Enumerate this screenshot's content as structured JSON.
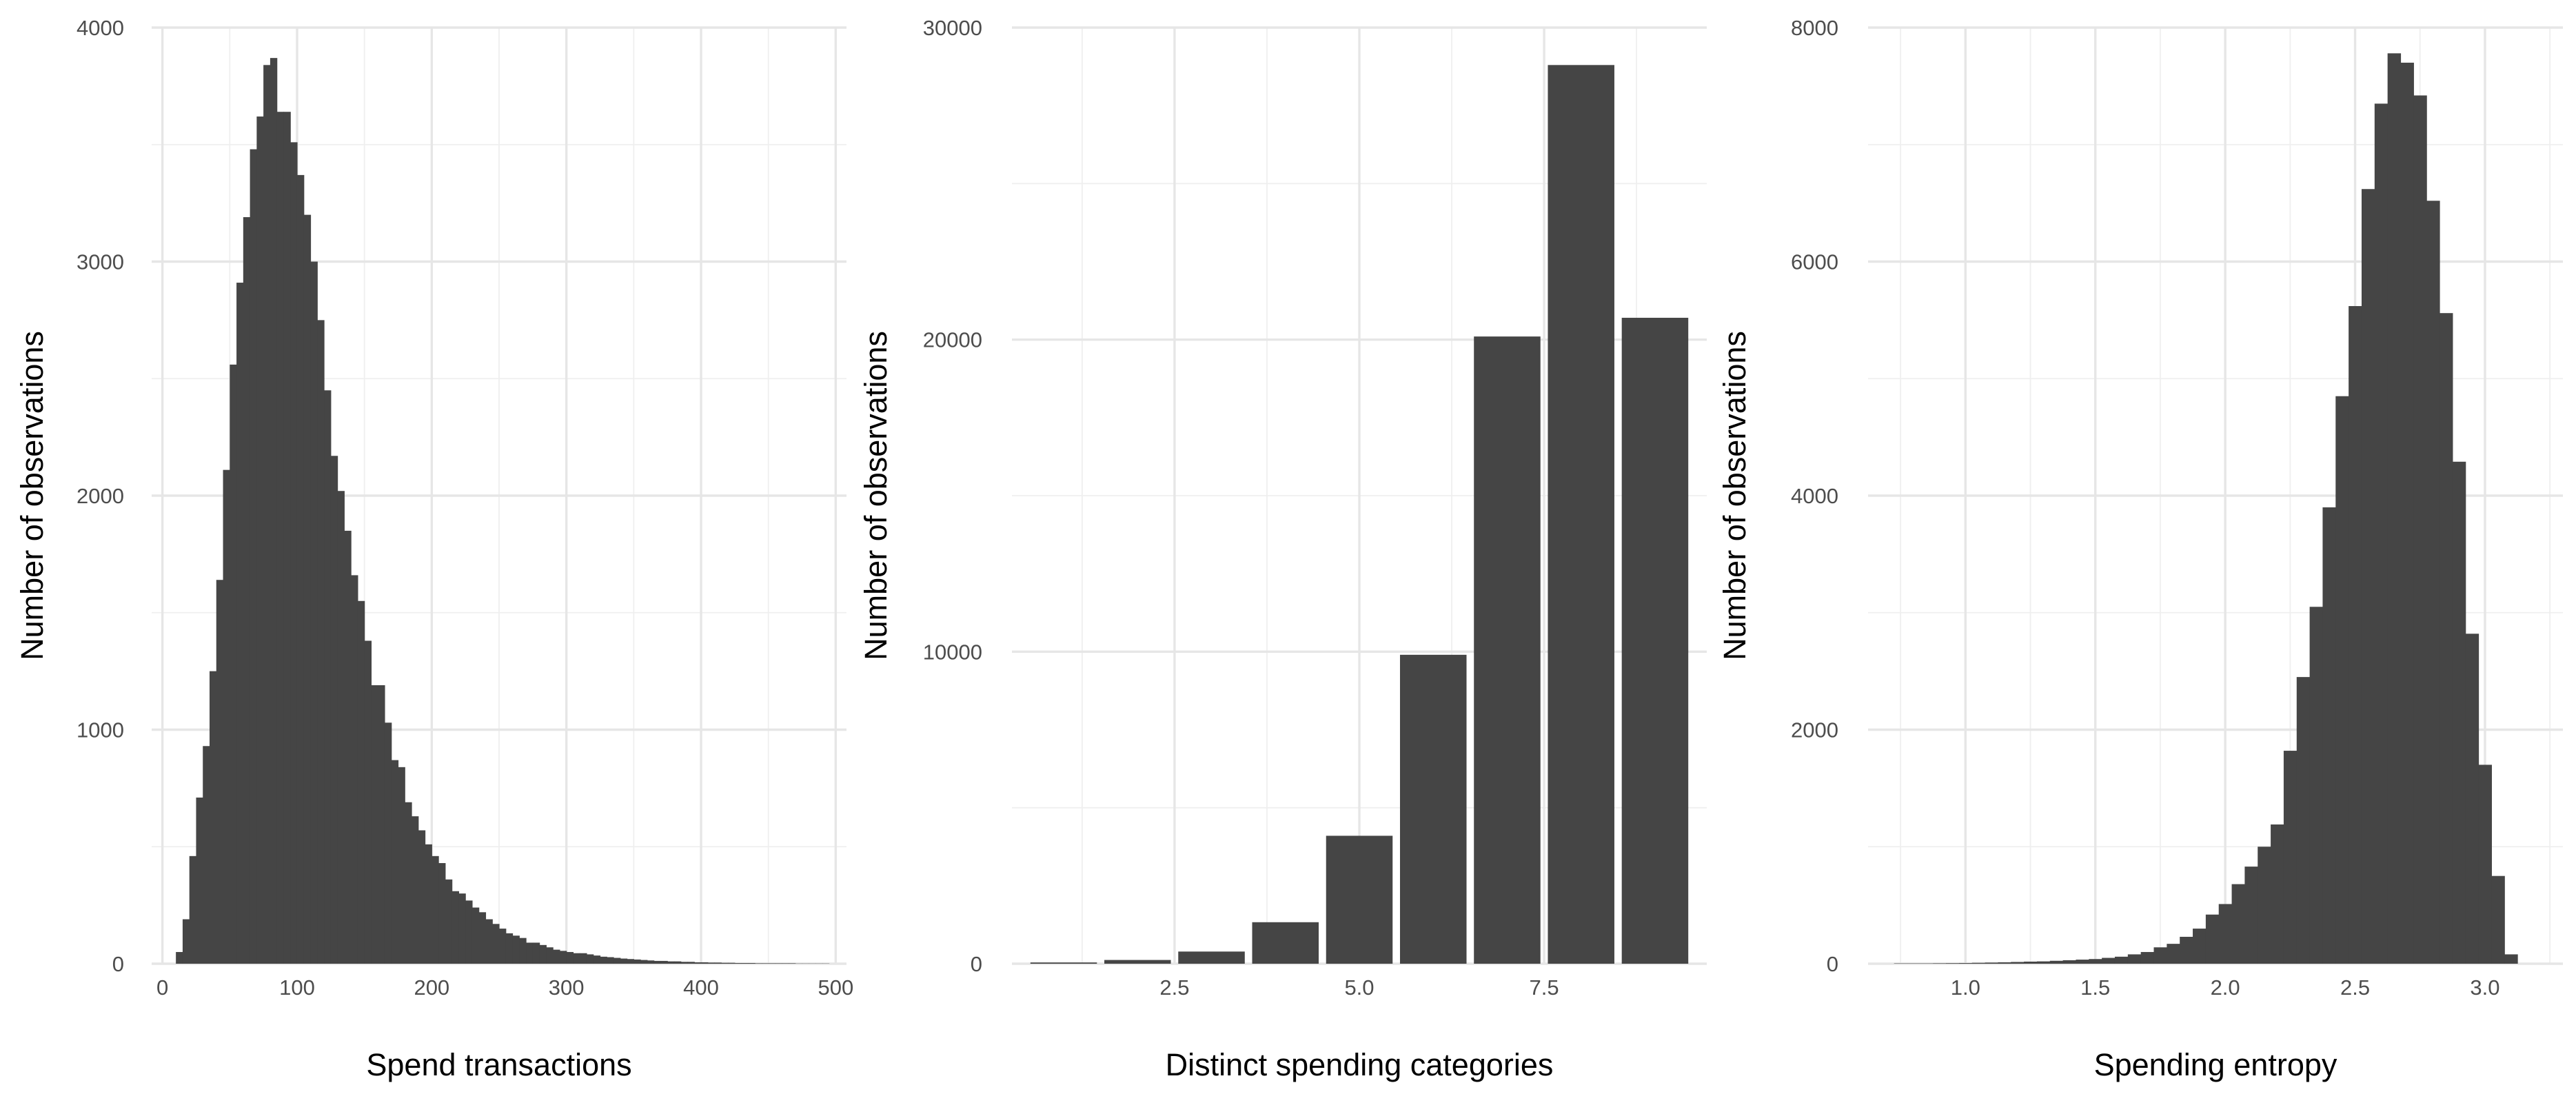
{
  "colors": {
    "bar": "#454545",
    "grid_major": "#e6e6e6",
    "grid_minor": "#efefef",
    "tick_text": "#4d4d4d"
  },
  "chart_data": [
    {
      "type": "bar",
      "subtype": "histogram",
      "xlabel": "Spend transactions",
      "ylabel": "Number of observations",
      "xlim": [
        -8,
        508
      ],
      "ylim": [
        0,
        4000
      ],
      "xticks": [
        0,
        100,
        200,
        300,
        400,
        500
      ],
      "xtick_labels": [
        "0",
        "100",
        "200",
        "300",
        "400",
        "500"
      ],
      "yticks": [
        0,
        1000,
        2000,
        3000,
        4000
      ],
      "ytick_labels": [
        "0",
        "1000",
        "2000",
        "3000",
        "4000"
      ],
      "grid": true,
      "bin_start": 5,
      "bin_width": 5,
      "values": [
        0,
        50,
        190,
        460,
        710,
        930,
        1250,
        1640,
        2110,
        2560,
        2910,
        3190,
        3480,
        3620,
        3840,
        3870,
        3640,
        3640,
        3510,
        3370,
        3200,
        3000,
        2750,
        2450,
        2170,
        2020,
        1850,
        1660,
        1550,
        1380,
        1190,
        1190,
        1030,
        870,
        840,
        690,
        630,
        570,
        510,
        460,
        430,
        360,
        310,
        300,
        270,
        240,
        220,
        190,
        170,
        150,
        130,
        120,
        110,
        90,
        90,
        80,
        70,
        60,
        55,
        50,
        45,
        45,
        40,
        35,
        30,
        28,
        25,
        22,
        20,
        18,
        16,
        14,
        12,
        12,
        10,
        10,
        8,
        8,
        6,
        6,
        5,
        5,
        4,
        4,
        3,
        3,
        3,
        2,
        2,
        2,
        2,
        2,
        2,
        1,
        1,
        1,
        1,
        1
      ]
    },
    {
      "type": "bar",
      "xlabel": "Distinct spending categories",
      "ylabel": "Number of observations",
      "xlim": [
        0.3,
        9.7
      ],
      "ylim": [
        0,
        30000
      ],
      "xticks": [
        2.5,
        5.0,
        7.5
      ],
      "xtick_labels": [
        "2.5",
        "5.0",
        "7.5"
      ],
      "yticks": [
        0,
        10000,
        20000,
        30000
      ],
      "ytick_labels": [
        "0",
        "10000",
        "20000",
        "30000"
      ],
      "grid": true,
      "bar_width": 0.9,
      "x": [
        1,
        2,
        3,
        4,
        5,
        6,
        7,
        8,
        9
      ],
      "values": [
        40,
        120,
        390,
        1330,
        4100,
        9900,
        20100,
        28800,
        20700
      ]
    },
    {
      "type": "bar",
      "subtype": "histogram",
      "xlabel": "Spending entropy",
      "ylabel": "Number of observations",
      "xlim": [
        0.625,
        3.3
      ],
      "ylim": [
        0,
        8000
      ],
      "xticks": [
        1.0,
        1.5,
        2.0,
        2.5,
        3.0
      ],
      "xtick_labels": [
        "1.0",
        "1.5",
        "2.0",
        "2.5",
        "3.0"
      ],
      "yticks": [
        0,
        2000,
        4000,
        6000,
        8000
      ],
      "ytick_labels": [
        "0",
        "2000",
        "4000",
        "6000",
        "8000"
      ],
      "grid": true,
      "bin_start": 0.725,
      "bin_width": 0.05,
      "values": [
        3,
        3,
        3,
        4,
        5,
        6,
        8,
        10,
        12,
        15,
        18,
        20,
        25,
        30,
        35,
        40,
        50,
        60,
        80,
        100,
        140,
        170,
        230,
        300,
        420,
        510,
        680,
        830,
        1000,
        1190,
        1820,
        2450,
        3050,
        3900,
        4850,
        5620,
        6620,
        7350,
        7780,
        7700,
        7420,
        6520,
        5560,
        4290,
        2820,
        1700,
        750,
        80
      ]
    }
  ]
}
